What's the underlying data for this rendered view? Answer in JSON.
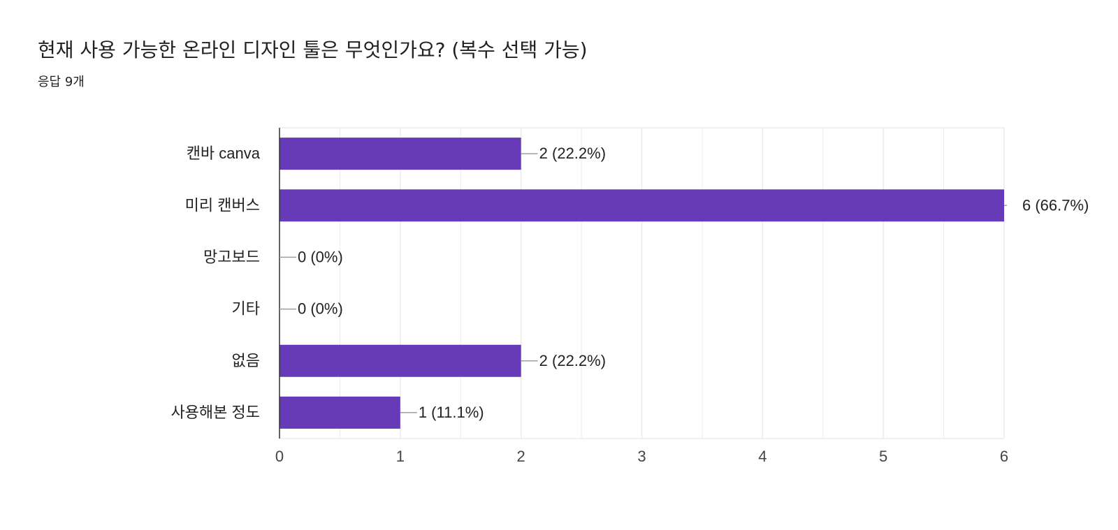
{
  "question": {
    "title": "현재 사용 가능한 온라인 디자인 툴은 무엇인가요? (복수 선택 가능)",
    "response_count": "응답 9개"
  },
  "colors": {
    "bar": "#673AB7",
    "grid": "#EBEBEB",
    "axis": "#333333",
    "leader": "#9E9E9E",
    "text": "#222222"
  },
  "chart_data": {
    "type": "bar",
    "orientation": "horizontal",
    "categories": [
      "캔바 canva",
      "미리 캔버스",
      "망고보드",
      "기타",
      "없음",
      "사용해본 정도"
    ],
    "values": [
      2,
      6,
      0,
      0,
      2,
      1
    ],
    "value_labels": [
      "2 (22.2%)",
      "6 (66.7%)",
      "0 (0%)",
      "0 (0%)",
      "2 (22.2%)",
      "1 (11.1%)"
    ],
    "xlim": [
      0,
      6
    ],
    "xticks": [
      0,
      1,
      2,
      3,
      4,
      5,
      6
    ],
    "grid": true,
    "legend": "none",
    "xlabel": "",
    "ylabel": ""
  }
}
